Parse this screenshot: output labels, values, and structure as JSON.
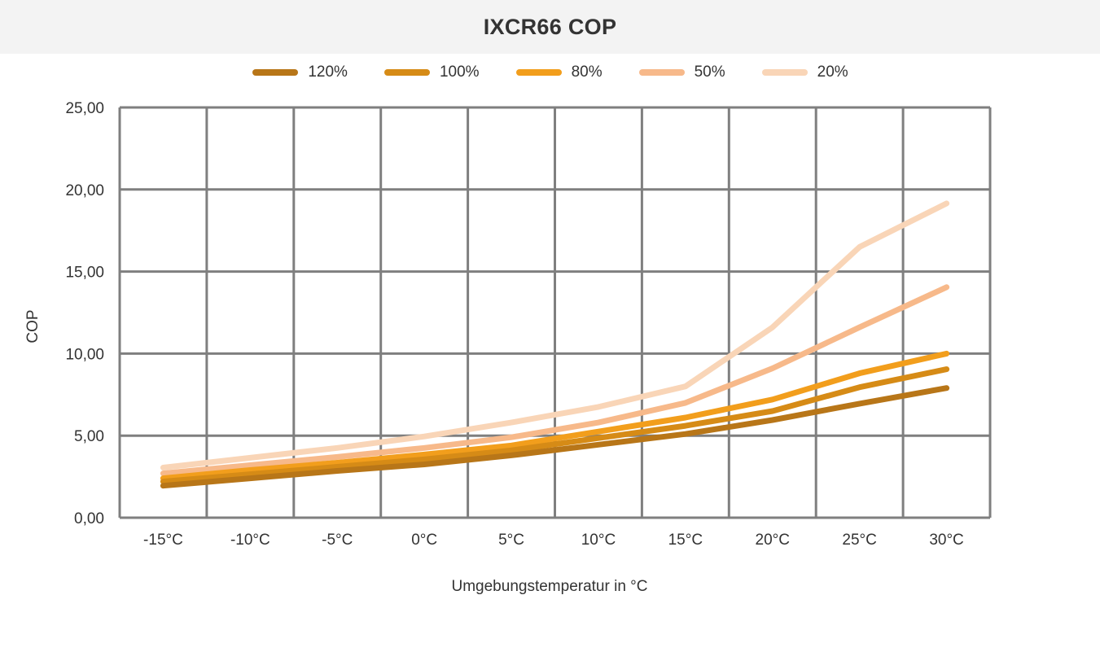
{
  "chart_data": {
    "type": "line",
    "title": "IXCR66 COP",
    "xlabel": "Umgebungstemperatur in °C",
    "ylabel": "COP",
    "categories": [
      "-15°C",
      "-10°C",
      "-5°C",
      "0°C",
      "5°C",
      "10°C",
      "15°C",
      "20°C",
      "25°C",
      "30°C"
    ],
    "y_ticks": [
      "0,00",
      "5,00",
      "10,00",
      "15,00",
      "20,00",
      "25,00"
    ],
    "ylim": [
      0,
      25
    ],
    "grid": true,
    "legend_position": "top",
    "series": [
      {
        "name": "120%",
        "color": "#b87618",
        "values": [
          1.95,
          2.4,
          2.85,
          3.25,
          3.8,
          4.45,
          5.1,
          5.95,
          6.95,
          7.9
        ]
      },
      {
        "name": "100%",
        "color": "#d68b16",
        "values": [
          2.2,
          2.65,
          3.1,
          3.55,
          4.1,
          4.85,
          5.6,
          6.5,
          7.95,
          9.05
        ]
      },
      {
        "name": "80%",
        "color": "#f29e1c",
        "values": [
          2.4,
          2.9,
          3.35,
          3.85,
          4.4,
          5.25,
          6.1,
          7.2,
          8.8,
          10.0
        ]
      },
      {
        "name": "50%",
        "color": "#f7b98a",
        "values": [
          2.7,
          3.2,
          3.7,
          4.25,
          4.9,
          5.8,
          7.0,
          9.1,
          11.6,
          14.05
        ]
      },
      {
        "name": "20%",
        "color": "#f9d5b7",
        "values": [
          3.05,
          3.65,
          4.25,
          4.95,
          5.8,
          6.75,
          8.0,
          11.6,
          16.5,
          19.15
        ]
      }
    ]
  }
}
